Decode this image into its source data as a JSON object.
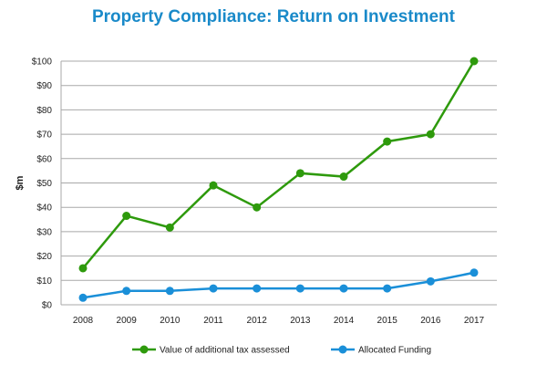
{
  "chart_data": {
    "type": "line",
    "title": "Property Compliance: Return on Investment",
    "xlabel": "",
    "ylabel": "$m",
    "x": [
      "2008",
      "2009",
      "2010",
      "2011",
      "2012",
      "2013",
      "2014",
      "2015",
      "2016",
      "2017"
    ],
    "ylim": [
      0,
      100
    ],
    "yticks": [
      0,
      10,
      20,
      30,
      40,
      50,
      60,
      70,
      80,
      90,
      100
    ],
    "ytick_labels": [
      "$0",
      "$10",
      "$20",
      "$30",
      "$40",
      "$50",
      "$60",
      "$70",
      "$80",
      "$90",
      "$100"
    ],
    "grid": "horizontal",
    "legend_position": "bottom",
    "series": [
      {
        "name": "Value of additional tax assessed",
        "color": "#2e9a0c",
        "values": [
          15,
          36.5,
          31.7,
          49,
          40,
          54,
          52.6,
          67,
          70,
          100
        ]
      },
      {
        "name": "Allocated Funding",
        "color": "#1a8fd8",
        "values": [
          2.9,
          5.7,
          5.7,
          6.7,
          6.7,
          6.7,
          6.7,
          6.7,
          9.6,
          13.2
        ]
      }
    ]
  }
}
